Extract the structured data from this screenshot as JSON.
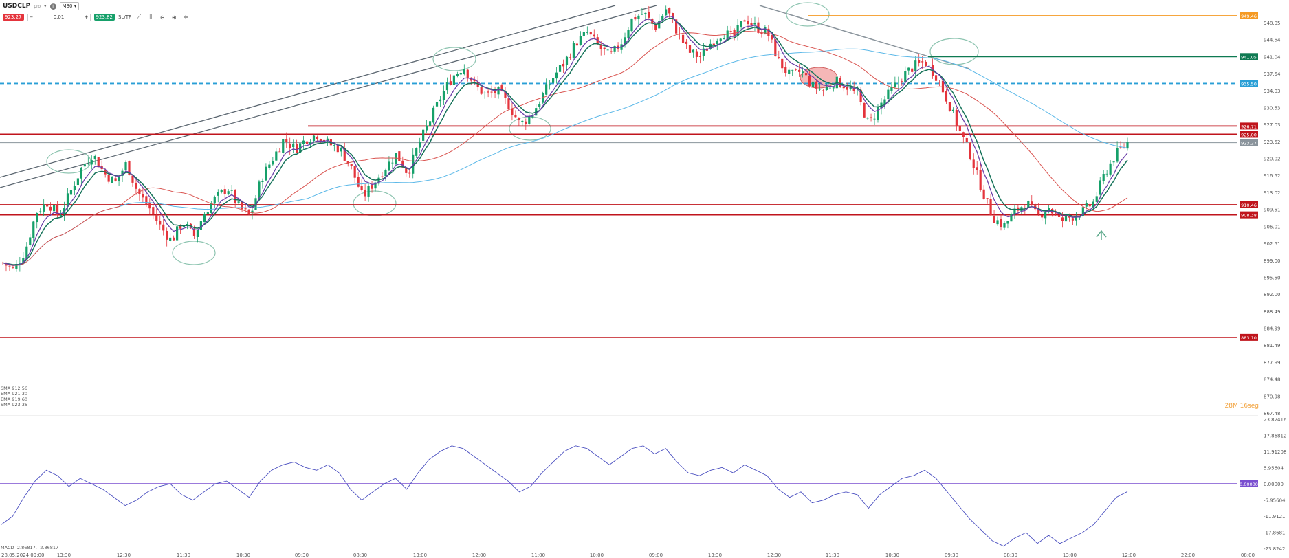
{
  "toolbar": {
    "symbol": "USDCLP",
    "symbol_sub": "pro",
    "timeframe": "M30",
    "sell_price": "923.27",
    "buy_price": "923.82",
    "quantity": "0.01",
    "sltp_label": "SL/TP",
    "tools": [
      "line-icon",
      "candles-icon",
      "zoom-out-icon",
      "zoom-in-icon",
      "crosshair-icon"
    ]
  },
  "countdown": {
    "minutes": "28M",
    "seconds": "16seg"
  },
  "legend": [
    "SMA 912.56",
    "EMA 921.30",
    "EMA 919.60",
    "SMA 923.36"
  ],
  "macd_legend": "MACD -2.86817, -2.86817",
  "colors": {
    "bull": "#16a06a",
    "bear": "#e4343c",
    "support": "#c0141c",
    "orange": "#f59a23",
    "green_level": "#0f7a52",
    "blue_dash": "#2a9fd6",
    "gray_line": "#5b6670",
    "ema_green": "#16735a",
    "ema_purple": "#6b3fa8",
    "sma_red": "#d9534f",
    "sma_blue": "#5bb8e8",
    "macd": "#4a4fc0",
    "macd_zero": "#7a4fd0",
    "ellipse": "#8dc4b0"
  },
  "chart_data": {
    "type": "line",
    "title": "USDCLP M30",
    "price_axis_ticks": [
      "948.05",
      "944.54",
      "941.04",
      "937.54",
      "934.03",
      "930.53",
      "927.03",
      "923.52",
      "920.02",
      "916.52",
      "913.02",
      "909.51",
      "906.01",
      "902.51",
      "899.00",
      "895.50",
      "892.00",
      "888.49",
      "884.99",
      "881.49",
      "877.99",
      "874.48",
      "870.98",
      "867.48"
    ],
    "time_axis_ticks": [
      "28.05.2024 09:00",
      "13:30",
      "12:30",
      "11:30",
      "10:30",
      "09:30",
      "08:30",
      "13:00",
      "12:00",
      "11:00",
      "10:00",
      "09:00",
      "13:30",
      "12:30",
      "11:30",
      "10:30",
      "09:30",
      "08:30",
      "13:00",
      "12:00",
      "22:00",
      "08:00"
    ],
    "horizontal_levels": [
      {
        "label": "949.46",
        "price": 949.46,
        "color": "orange"
      },
      {
        "label": "941.05",
        "price": 941.05,
        "color": "green_level"
      },
      {
        "label": "935.50",
        "price": 935.5,
        "color": "blue_dash"
      },
      {
        "label": "926.71",
        "price": 926.71,
        "color": "support"
      },
      {
        "label": "925.00",
        "price": 925.0,
        "color": "support"
      },
      {
        "label": "923.27",
        "price": 923.27,
        "color": "gray"
      },
      {
        "label": "910.46",
        "price": 910.46,
        "color": "support"
      },
      {
        "label": "908.38",
        "price": 908.38,
        "color": "support"
      },
      {
        "label": "883.10",
        "price": 883.1,
        "color": "support"
      }
    ],
    "price_path": [
      898.5,
      897,
      901,
      909,
      911,
      908,
      913,
      918,
      921,
      917,
      915,
      919,
      913,
      910,
      906,
      903,
      907,
      904,
      909,
      912,
      914,
      910,
      908,
      916,
      920,
      924,
      922,
      924,
      925,
      923,
      922,
      918,
      912,
      915,
      918,
      921,
      917,
      923,
      928,
      933,
      937,
      939,
      935,
      933,
      934,
      931,
      927,
      929,
      933,
      937,
      940,
      944,
      946,
      943,
      941,
      944,
      949,
      950,
      947,
      951,
      946,
      942,
      941,
      944,
      946,
      945,
      949,
      947,
      946,
      940,
      937,
      938,
      935,
      934,
      936,
      935,
      933,
      927,
      931,
      934,
      937,
      939,
      940,
      937,
      932,
      926,
      921,
      914,
      908,
      906,
      909,
      911,
      908,
      910,
      907,
      908,
      909,
      911,
      917,
      921,
      923.27
    ],
    "macd_axis_ticks": [
      "23.82416",
      "17.86812",
      "11.91208",
      "5.95604",
      "0.00000",
      "-5.95604",
      "-11.9121",
      "-17.8681",
      "-23.8242"
    ],
    "macd_zero_label": "0.00000",
    "macd_values": [
      -15,
      -12,
      -5,
      1,
      5,
      3,
      -1,
      2,
      0,
      -2,
      -5,
      -8,
      -6,
      -3,
      -1,
      0,
      -4,
      -6,
      -3,
      0,
      1,
      -2,
      -5,
      1,
      5,
      7,
      8,
      6,
      5,
      7,
      4,
      -2,
      -6,
      -3,
      0,
      2,
      -2,
      4,
      9,
      12,
      14,
      13,
      10,
      7,
      4,
      1,
      -3,
      -1,
      4,
      8,
      12,
      14,
      13,
      10,
      7,
      10,
      13,
      14,
      11,
      13,
      8,
      4,
      3,
      5,
      6,
      4,
      7,
      5,
      3,
      -2,
      -5,
      -3,
      -7,
      -6,
      -4,
      -3,
      -4,
      -9,
      -4,
      -1,
      2,
      3,
      5,
      2,
      -3,
      -8,
      -13,
      -17,
      -21,
      -23,
      -20,
      -18,
      -22,
      -19,
      -22,
      -20,
      -18,
      -15,
      -10,
      -5,
      -2.87
    ],
    "ylim": [
      867.48,
      951.5
    ]
  }
}
